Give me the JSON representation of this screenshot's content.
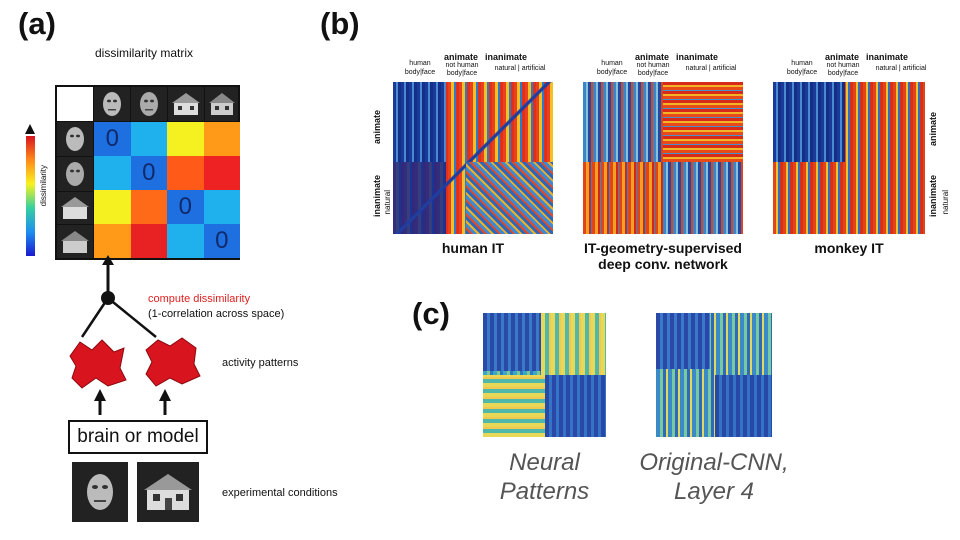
{
  "panel_a": {
    "label": "(a)",
    "matrix_title": "dissimilarity matrix",
    "colorbar_label": "dissimilarity",
    "diag_values": [
      "0",
      "0",
      "0",
      "0"
    ],
    "colors": [
      [
        "#ffffff",
        "#ffffff",
        "#ffffff",
        "#ffffff"
      ],
      [
        "#1e6fe0",
        "#1fb0ee",
        "#f5f020",
        "#ff9a18"
      ],
      [
        "#1fb0ee",
        "#1e6fe0",
        "#ff5a18",
        "#ee2222"
      ],
      [
        "#f5f020",
        "#ff6a18",
        "#1e6fe0",
        "#1fb0ee"
      ],
      [
        "#ff9a18",
        "#e82222",
        "#1fb0ee",
        "#1e6fe0"
      ]
    ],
    "compute_title": "compute dissimilarity",
    "compute_sub": "(1-correlation across space)",
    "activity_label": "activity patterns",
    "box_label": "brain or model",
    "conditions_label": "experimental conditions",
    "accent_red": "#e02020"
  },
  "panel_b": {
    "label": "(b)",
    "matrices": [
      {
        "title_line1": "human IT",
        "title_line2": ""
      },
      {
        "title_line1": "IT-geometry-supervised",
        "title_line2": "deep conv. network"
      },
      {
        "title_line1": "monkey IT",
        "title_line2": ""
      }
    ],
    "header": {
      "human": "human",
      "body": "body",
      "face": "face",
      "animate": "animate",
      "not_human": "not human",
      "inanimate": "inanimate",
      "natural": "natural",
      "artificial": "artificial"
    }
  },
  "panel_c": {
    "label": "(c)",
    "left_caption_1": "Neural",
    "left_caption_2": "Patterns",
    "right_caption_1": "Original-CNN,",
    "right_caption_2": "Layer 4"
  }
}
